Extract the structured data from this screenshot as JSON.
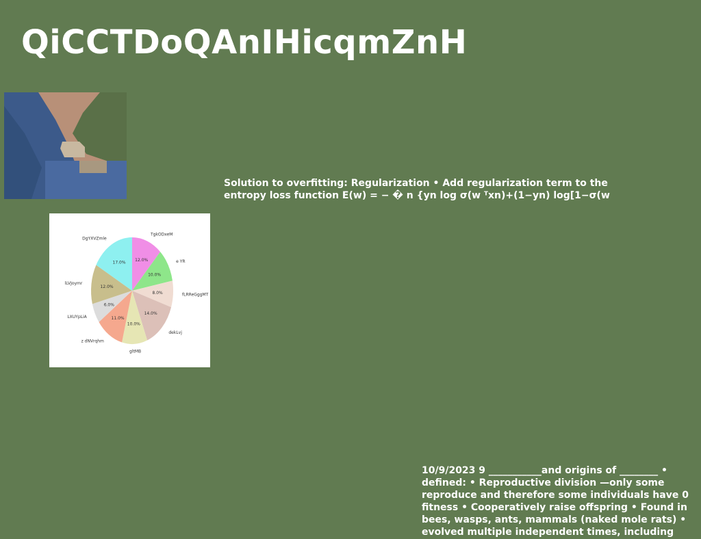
{
  "slide": {
    "title": "QiCCTDoQAnIHicqmZnH",
    "middle_text": "Solution to overfitting: Regularization • Add regularization term to the entropy loss function E(w) = − � n {yn log σ(w ᵀxn)+(1−yn) log[1−σ(w",
    "bottom_text": "10/9/2023 9 ___________and origins of ________ • defined: • Reproductive division —only some reproduce and therefore some individuals have 0 fitness • Cooperatively raise offspring • Found in bees, wasps, ants, mammals (naked mole rats) • evolved multiple independent times, including"
  },
  "photo": {
    "colors": {
      "sky": "#b89078",
      "slope": "#3c5a8a",
      "ridge": "#5a7048",
      "house": "#c8b8a0"
    }
  },
  "chart_data": {
    "type": "pie",
    "start_angle_deg": 90,
    "direction": "clockwise",
    "categories": [
      "TgkODxeM",
      "e YR",
      "fLRReGggMT",
      "dekLvj",
      "gltMB",
      "z dNVrqhm",
      "LXUYpLiA",
      "lLVJoymr",
      "DgYXVZmle"
    ],
    "values": [
      12.0,
      10.0,
      8.0,
      14.0,
      10.0,
      11.0,
      6.0,
      12.0,
      17.0
    ],
    "labels_pct": [
      "12.0%",
      "10.0%",
      "8.0%",
      "14.0%",
      "10.0%",
      "11.0%",
      "6.0%",
      "12.0%",
      "17.0%"
    ],
    "colors": [
      "#f08ee6",
      "#8ee68a",
      "#f0dcd2",
      "#dcc0b8",
      "#e6e6b4",
      "#f5a88e",
      "#dcdcdc",
      "#c8be8c",
      "#8ef0f0"
    ]
  }
}
